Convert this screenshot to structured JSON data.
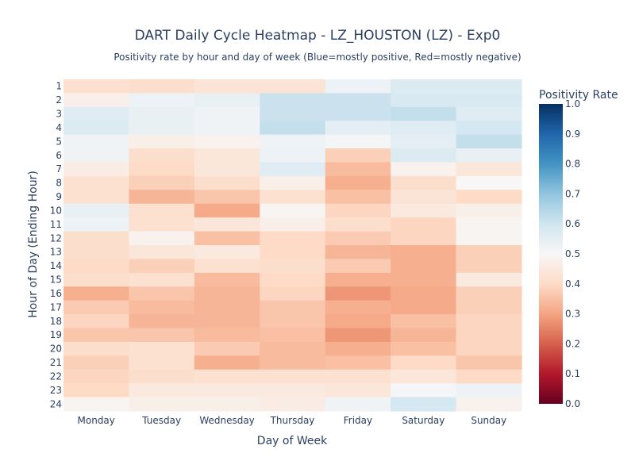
{
  "chart_data": {
    "type": "heatmap",
    "title": "DART Daily Cycle Heatmap - LZ_HOUSTON (LZ) - Exp0",
    "subtitle": "Positivity rate by hour and day of week (Blue=mostly positive, Red=mostly negative)",
    "xlabel": "Day of Week",
    "ylabel": "Hour of Day (Ending Hour)",
    "x": [
      "Monday",
      "Tuesday",
      "Wednesday",
      "Thursday",
      "Friday",
      "Saturday",
      "Sunday"
    ],
    "y": [
      "1",
      "2",
      "3",
      "4",
      "5",
      "6",
      "7",
      "8",
      "9",
      "10",
      "11",
      "12",
      "13",
      "14",
      "15",
      "16",
      "17",
      "18",
      "19",
      "20",
      "21",
      "22",
      "23",
      "24"
    ],
    "z": [
      [
        0.42,
        0.41,
        0.43,
        0.43,
        0.53,
        0.57,
        0.57
      ],
      [
        0.47,
        0.53,
        0.54,
        0.61,
        0.61,
        0.58,
        0.58
      ],
      [
        0.56,
        0.54,
        0.52,
        0.61,
        0.61,
        0.62,
        0.56
      ],
      [
        0.57,
        0.54,
        0.52,
        0.62,
        0.55,
        0.56,
        0.59
      ],
      [
        0.52,
        0.47,
        0.48,
        0.52,
        0.51,
        0.55,
        0.62
      ],
      [
        0.52,
        0.41,
        0.44,
        0.53,
        0.38,
        0.57,
        0.54
      ],
      [
        0.46,
        0.4,
        0.44,
        0.56,
        0.34,
        0.48,
        0.44
      ],
      [
        0.42,
        0.38,
        0.41,
        0.47,
        0.32,
        0.41,
        0.5
      ],
      [
        0.42,
        0.33,
        0.36,
        0.42,
        0.35,
        0.43,
        0.4
      ],
      [
        0.54,
        0.42,
        0.31,
        0.49,
        0.39,
        0.45,
        0.47
      ],
      [
        0.53,
        0.42,
        0.44,
        0.47,
        0.41,
        0.39,
        0.49
      ],
      [
        0.41,
        0.48,
        0.35,
        0.4,
        0.37,
        0.39,
        0.49
      ],
      [
        0.41,
        0.44,
        0.45,
        0.4,
        0.33,
        0.32,
        0.38
      ],
      [
        0.4,
        0.38,
        0.42,
        0.41,
        0.37,
        0.32,
        0.38
      ],
      [
        0.41,
        0.42,
        0.34,
        0.4,
        0.32,
        0.32,
        0.45
      ],
      [
        0.32,
        0.36,
        0.33,
        0.39,
        0.28,
        0.31,
        0.38
      ],
      [
        0.37,
        0.34,
        0.33,
        0.36,
        0.32,
        0.31,
        0.38
      ],
      [
        0.39,
        0.33,
        0.33,
        0.36,
        0.31,
        0.35,
        0.39
      ],
      [
        0.36,
        0.36,
        0.34,
        0.35,
        0.28,
        0.33,
        0.39
      ],
      [
        0.41,
        0.42,
        0.37,
        0.34,
        0.32,
        0.35,
        0.39
      ],
      [
        0.38,
        0.42,
        0.32,
        0.34,
        0.35,
        0.4,
        0.36
      ],
      [
        0.39,
        0.41,
        0.42,
        0.42,
        0.42,
        0.44,
        0.4
      ],
      [
        0.4,
        0.45,
        0.45,
        0.45,
        0.44,
        0.51,
        0.53
      ],
      [
        0.49,
        0.47,
        0.47,
        0.46,
        0.52,
        0.59,
        0.48
      ]
    ],
    "zmin": 0,
    "zmax": 1,
    "colorbar": {
      "title": "Positivity Rate",
      "ticks": [
        "0.0",
        "0.1",
        "0.2",
        "0.3",
        "0.4",
        "0.5",
        "0.6",
        "0.7",
        "0.8",
        "0.9",
        "1.0"
      ]
    },
    "colorscale": [
      [
        0.0,
        "#67001f"
      ],
      [
        0.1,
        "#b2182b"
      ],
      [
        0.2,
        "#d6604d"
      ],
      [
        0.3,
        "#f4a582"
      ],
      [
        0.4,
        "#fddbc7"
      ],
      [
        0.5,
        "#f7f7f7"
      ],
      [
        0.6,
        "#d1e5f0"
      ],
      [
        0.7,
        "#92c5de"
      ],
      [
        0.8,
        "#4393c3"
      ],
      [
        0.9,
        "#2166ac"
      ],
      [
        1.0,
        "#053061"
      ]
    ]
  }
}
